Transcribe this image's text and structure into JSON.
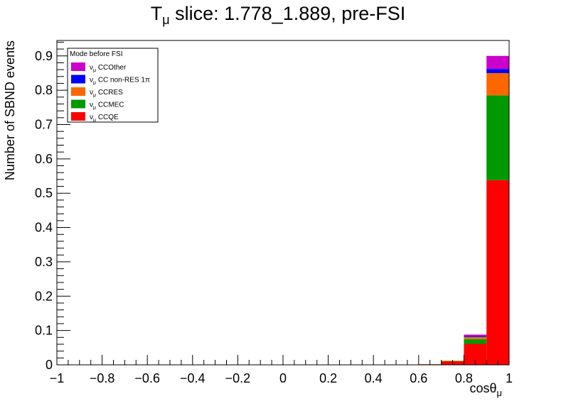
{
  "chart_data": {
    "type": "bar",
    "stacked": true,
    "title": "T",
    "title_sub": "μ",
    "title_rest": " slice: 1.778_1.889, pre-FSI",
    "xlabel": "cosθ",
    "xlabel_sub": "μ",
    "ylabel": "Number of SBND events",
    "xlim": [
      -1,
      1
    ],
    "ylim": [
      0,
      0.945
    ],
    "x_ticks": [
      -1,
      -0.8,
      -0.6,
      -0.4,
      -0.2,
      0,
      0.2,
      0.4,
      0.6,
      0.8,
      1
    ],
    "x_tick_labels": [
      "−1",
      "−0.8",
      "−0.6",
      "−0.4",
      "−0.2",
      "0",
      "0.2",
      "0.4",
      "0.6",
      "0.8",
      "1"
    ],
    "y_ticks": [
      0,
      0.1,
      0.2,
      0.3,
      0.4,
      0.5,
      0.6,
      0.7,
      0.8,
      0.9
    ],
    "y_tick_labels": [
      "0",
      "0.1",
      "0.2",
      "0.3",
      "0.4",
      "0.5",
      "0.6",
      "0.7",
      "0.8",
      "0.9"
    ],
    "bin_edges": [
      -1.0,
      -0.9,
      -0.8,
      -0.7,
      -0.6,
      -0.5,
      -0.4,
      -0.3,
      -0.2,
      -0.1,
      0.0,
      0.1,
      0.2,
      0.3,
      0.4,
      0.5,
      0.6,
      0.7,
      0.8,
      0.9,
      1.0
    ],
    "legend": {
      "title": "Mode before FSI",
      "position": "top-left"
    },
    "series": [
      {
        "name": "CCQE",
        "name_prefix": "ν",
        "name_sub": "μ",
        "color": "#ff0000",
        "values": [
          0,
          0,
          0,
          0,
          0,
          0,
          0,
          0,
          0,
          0,
          0,
          0,
          0,
          0,
          0,
          0,
          0.001,
          0.01,
          0.061,
          0.538
        ]
      },
      {
        "name": "CCMEC",
        "name_prefix": "ν",
        "name_sub": "μ",
        "color": "#009900",
        "values": [
          0,
          0,
          0,
          0,
          0,
          0,
          0,
          0,
          0,
          0,
          0,
          0,
          0,
          0,
          0,
          0,
          0,
          0.001,
          0.014,
          0.247
        ]
      },
      {
        "name": "CCRES",
        "name_prefix": "ν",
        "name_sub": "μ",
        "color": "#ff6600",
        "values": [
          0,
          0,
          0,
          0,
          0,
          0,
          0,
          0,
          0,
          0,
          0,
          0,
          0,
          0,
          0,
          0,
          0.001,
          0.001,
          0.006,
          0.065
        ]
      },
      {
        "name": "CC non-RES 1π",
        "name_prefix": "ν",
        "name_sub": "μ",
        "color": "#0000ff",
        "values": [
          0,
          0,
          0,
          0,
          0,
          0,
          0,
          0,
          0,
          0,
          0,
          0,
          0,
          0,
          0,
          0,
          0,
          0,
          0.003,
          0.012
        ]
      },
      {
        "name": "CCOther",
        "name_prefix": "ν",
        "name_sub": "μ",
        "color": "#cc00cc",
        "values": [
          0,
          0,
          0,
          0,
          0,
          0,
          0,
          0,
          0,
          0,
          0,
          0,
          0,
          0,
          0,
          0,
          0,
          0,
          0.004,
          0.038
        ]
      }
    ]
  }
}
